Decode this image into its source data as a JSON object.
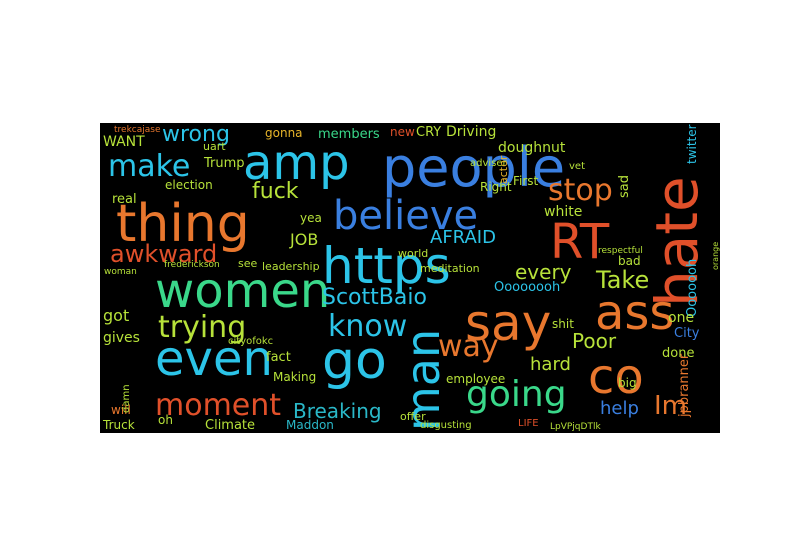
{
  "palette": {
    "orange": "#e8772e",
    "red": "#e0502a",
    "cyan": "#2cc4e8",
    "blue": "#3a7fe0",
    "green": "#3ad88a",
    "lime": "#b7e23a",
    "teal": "#2ab8c8",
    "yellow": "#e8b52a"
  },
  "words": {
    "people": "people",
    "hate": "hate",
    "amp": "amp",
    "thing": "thing",
    "believe": "believe",
    "RT": "RT",
    "https": "https",
    "women": "women",
    "say": "say",
    "ass": "ass",
    "even": "even",
    "go": "go",
    "man": "man",
    "co": "co",
    "going": "going",
    "moment": "moment",
    "trying": "trying",
    "know": "know",
    "way": "way",
    "stop": "stop",
    "make": "make",
    "wrong": "wrong",
    "awkward": "awkward",
    "Take": "Take",
    "every": "every",
    "ScottBaio": "ScottBaio",
    "AFRAID": "AFRAID",
    "Breaking": "Breaking",
    "Im": "Im",
    "help": "help",
    "Poor": "Poor",
    "hard": "hard",
    "fuck": "fuck",
    "JOB": "JOB",
    "got": "got",
    "gives": "gives",
    "WANT": "WANT",
    "Trump": "Trump",
    "members": "members",
    "gonna": "gonna",
    "Driving": "Driving",
    "doughnut": "doughnut",
    "CRY": "CRY",
    "new": "new",
    "twitter": "twitter",
    "Ooooooh": "Ooooooh",
    "Oooooooh": "Oooooooh",
    "white": "white",
    "sad": "sad",
    "bad": "bad",
    "one": "one",
    "City": "City",
    "done": "done",
    "employee": "employee",
    "fact": "fact",
    "Making": "Making",
    "Maddon": "Maddon",
    "Climate": "Climate",
    "Truck": "Truck",
    "will": "will",
    "oh": "oh",
    "election": "election",
    "real": "real",
    "yea": "yea",
    "world": "world",
    "meditation": "meditation",
    "leadership": "leadership",
    "Right": "Right",
    "First": "First",
    "shit": "shit",
    "big": "big",
    "see": "see",
    "offer": "offer",
    "disgusting": "disgusting",
    "LIFE": "LIFE",
    "jpbranner": "jpbranner",
    "uart": "uart",
    "adviser": "adviser",
    "actor": "actor",
    "vet": "vet",
    "damn": "damn",
    "cityofokc": "cityofokc",
    "woman": "woman",
    "frederickson": "frederickson",
    "trekcajase": "trekcajase",
    "respectful": "respectful",
    "orange": "orange",
    "LpVPjqDTlk": "LpVPjqDTlk"
  }
}
